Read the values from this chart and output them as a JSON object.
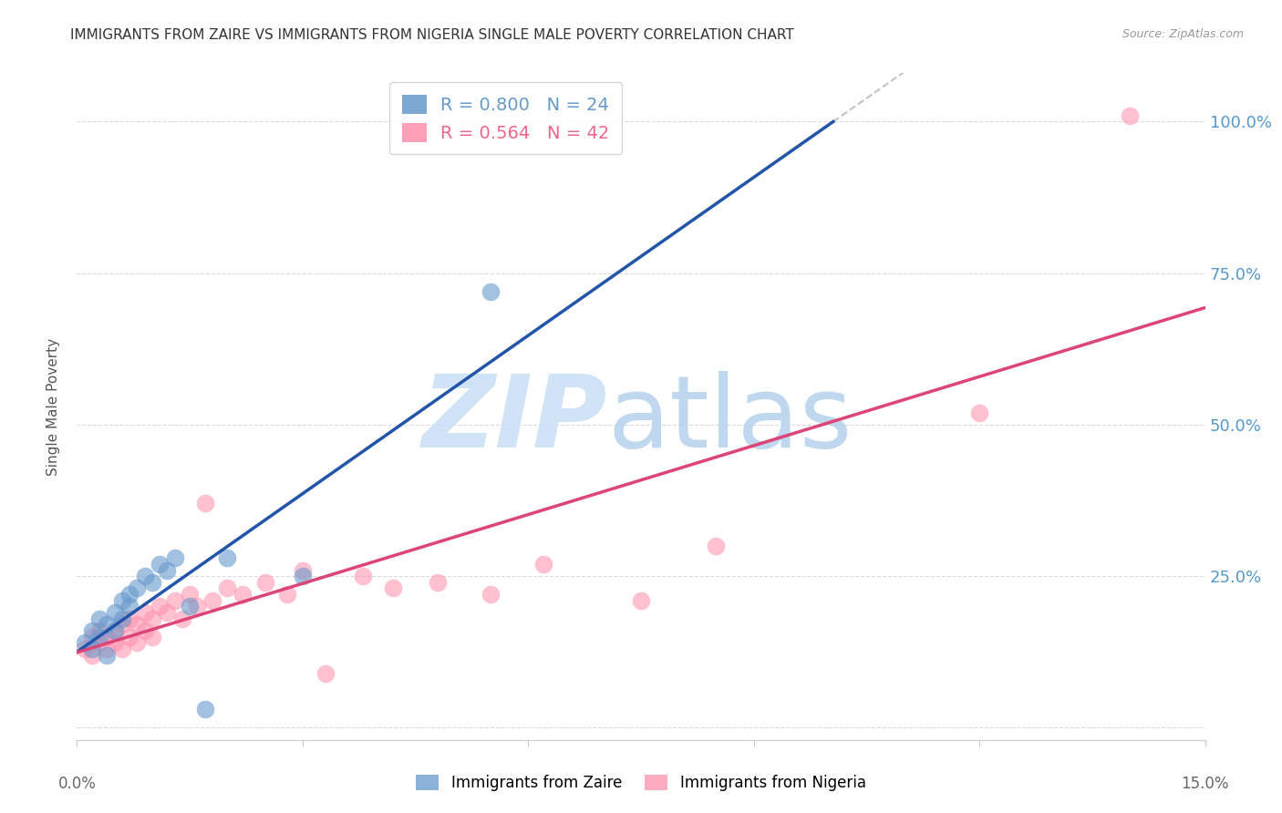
{
  "title": "IMMIGRANTS FROM ZAIRE VS IMMIGRANTS FROM NIGERIA SINGLE MALE POVERTY CORRELATION CHART",
  "source": "Source: ZipAtlas.com",
  "ylabel": "Single Male Poverty",
  "yticks": [
    0.0,
    0.25,
    0.5,
    0.75,
    1.0
  ],
  "ytick_labels": [
    "",
    "25.0%",
    "50.0%",
    "75.0%",
    "100.0%"
  ],
  "xlim": [
    0.0,
    0.15
  ],
  "ylim": [
    -0.02,
    1.08
  ],
  "legend_entries": [
    {
      "label": "R = 0.800   N = 24",
      "color": "#6699cc"
    },
    {
      "label": "R = 0.564   N = 42",
      "color": "#ee6688"
    }
  ],
  "zaire_x": [
    0.001,
    0.002,
    0.002,
    0.003,
    0.003,
    0.004,
    0.004,
    0.005,
    0.005,
    0.006,
    0.006,
    0.007,
    0.007,
    0.008,
    0.009,
    0.01,
    0.011,
    0.012,
    0.013,
    0.015,
    0.017,
    0.02,
    0.03,
    0.055
  ],
  "zaire_y": [
    0.14,
    0.13,
    0.16,
    0.15,
    0.18,
    0.12,
    0.17,
    0.16,
    0.19,
    0.18,
    0.21,
    0.2,
    0.22,
    0.23,
    0.25,
    0.24,
    0.27,
    0.26,
    0.28,
    0.2,
    0.03,
    0.28,
    0.25,
    0.72
  ],
  "nigeria_x": [
    0.001,
    0.002,
    0.002,
    0.003,
    0.003,
    0.004,
    0.004,
    0.005,
    0.005,
    0.006,
    0.006,
    0.007,
    0.007,
    0.008,
    0.008,
    0.009,
    0.009,
    0.01,
    0.01,
    0.011,
    0.012,
    0.013,
    0.014,
    0.015,
    0.016,
    0.017,
    0.018,
    0.02,
    0.022,
    0.025,
    0.028,
    0.03,
    0.033,
    0.038,
    0.042,
    0.048,
    0.055,
    0.062,
    0.075,
    0.085,
    0.12,
    0.14
  ],
  "nigeria_y": [
    0.13,
    0.12,
    0.15,
    0.14,
    0.16,
    0.13,
    0.15,
    0.14,
    0.16,
    0.13,
    0.17,
    0.15,
    0.18,
    0.14,
    0.17,
    0.16,
    0.19,
    0.15,
    0.18,
    0.2,
    0.19,
    0.21,
    0.18,
    0.22,
    0.2,
    0.37,
    0.21,
    0.23,
    0.22,
    0.24,
    0.22,
    0.26,
    0.09,
    0.25,
    0.23,
    0.24,
    0.22,
    0.27,
    0.21,
    0.3,
    0.52,
    1.01
  ],
  "zaire_color": "#6699cc",
  "nigeria_color": "#ff8fab",
  "zaire_line_color": "#2255aa",
  "nigeria_line_color": "#dd4477",
  "diag_line_color": "#aaaaaa",
  "background_color": "#ffffff",
  "grid_color": "#cccccc",
  "title_fontsize": 11,
  "tick_label_color_right": "#5599cc",
  "watermark_zip": "ZIP",
  "watermark_atlas": "atlas"
}
